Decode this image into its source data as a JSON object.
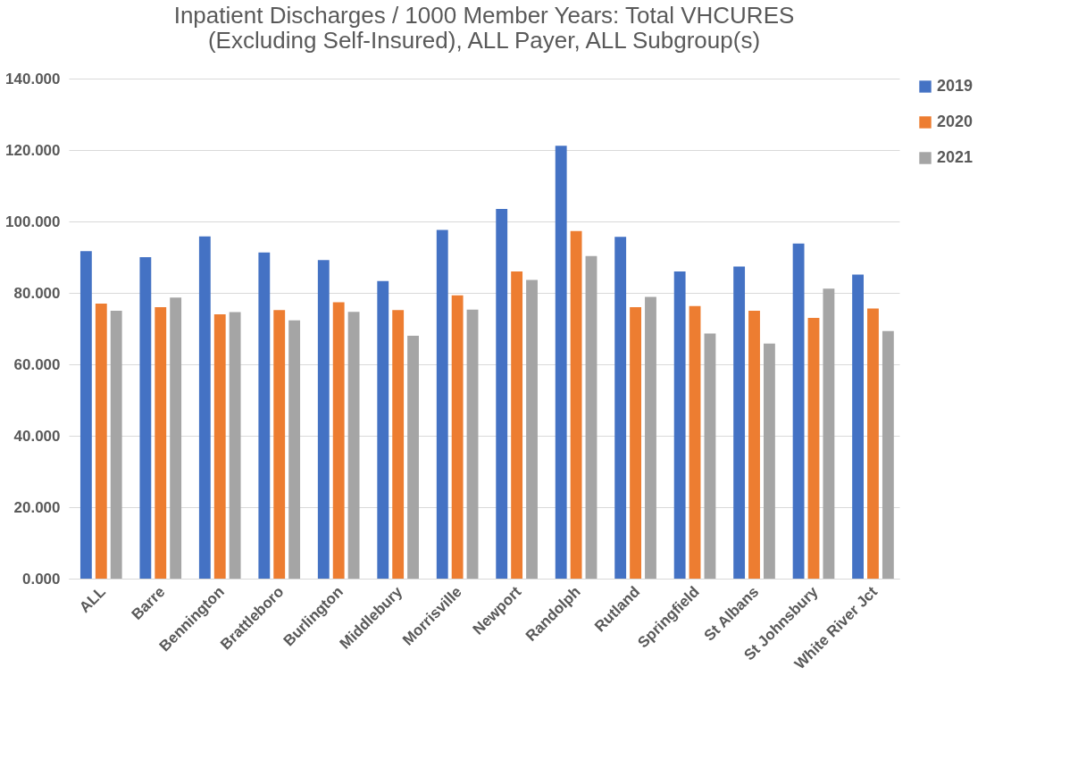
{
  "chart_data": {
    "type": "bar",
    "title": "Inpatient Discharges / 1000 Member Years: Total VHCURES (Excluding Self-Insured), ALL Payer, ALL Subgroup(s)",
    "categories": [
      "ALL",
      "Barre",
      "Bennington",
      "Brattleboro",
      "Burlington",
      "Middlebury",
      "Morrisville",
      "Newport",
      "Randolph",
      "Rutland",
      "Springfield",
      "St Albans",
      "St Johnsbury",
      "White River Jct"
    ],
    "series": [
      {
        "name": "2019",
        "color": "#4472c4",
        "values": [
          91.7,
          90,
          95.8,
          91.3,
          89.2,
          83.3,
          97.6,
          103.5,
          121.2,
          95.7,
          86,
          87.4,
          93.8,
          85.1
        ]
      },
      {
        "name": "2020",
        "color": "#ed7d31",
        "values": [
          77,
          76,
          74,
          75.2,
          77.4,
          75.2,
          79.3,
          86,
          97.3,
          76,
          76.3,
          75,
          73,
          75.6
        ]
      },
      {
        "name": "2021",
        "color": "#a5a5a5",
        "values": [
          75,
          78.7,
          74.6,
          72.3,
          74.7,
          68,
          75.3,
          83.6,
          90.3,
          78.9,
          68.6,
          65.8,
          81.2,
          69.3
        ]
      }
    ],
    "ylim": [
      0,
      140
    ],
    "yticks": [
      {
        "value": 0,
        "label": "0.000"
      },
      {
        "value": 20,
        "label": "20.000"
      },
      {
        "value": 40,
        "label": "40.000"
      },
      {
        "value": 60,
        "label": "60.000"
      },
      {
        "value": 80,
        "label": "80.000"
      },
      {
        "value": 100,
        "label": "100.000"
      },
      {
        "value": 120,
        "label": "120.000"
      },
      {
        "value": 140,
        "label": "140.000"
      }
    ],
    "grid": "y",
    "legend": "right"
  }
}
